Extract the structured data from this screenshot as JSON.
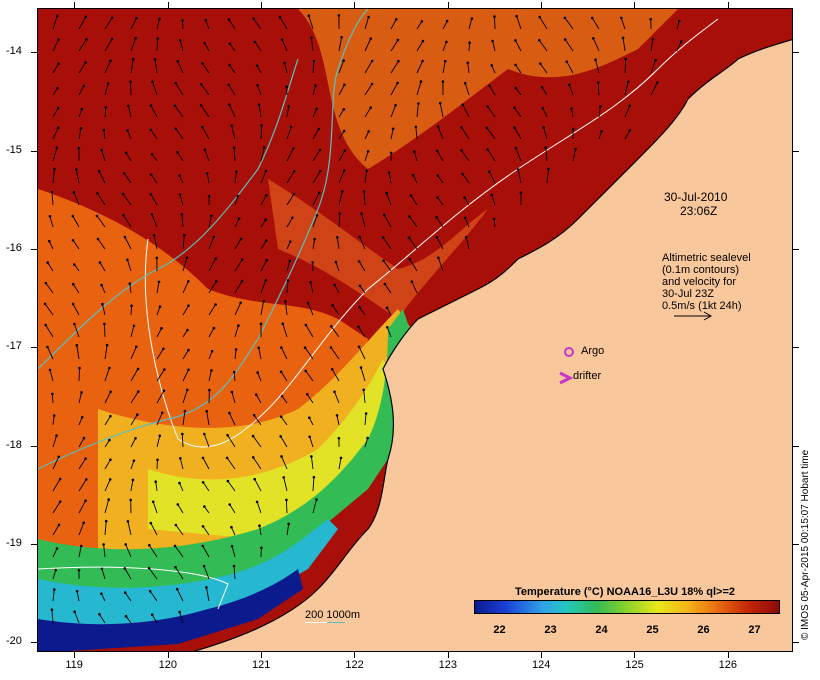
{
  "date_label": "30-Jul-2010",
  "time_label": "23:06Z",
  "altimetry_lines": [
    "Altimetric sealevel",
    "(0.1m contours)",
    "and velocity for",
    "30-Jul 23Z",
    "0.5m/s (1kt 24h)"
  ],
  "argo_label": "Argo",
  "drifter_label": "drifter",
  "bathy_label": "200 1000m",
  "colorbar": {
    "title": "Temperature (°C) NOAA16_L3U 18% ql>=2",
    "ticks": [
      "22",
      "23",
      "24",
      "25",
      "26",
      "27"
    ],
    "tick_values": [
      22,
      23,
      24,
      25,
      26,
      27
    ],
    "range": [
      21.5,
      27.5
    ]
  },
  "side_credit": "© IMOS 05-Apr-2015 00:15:07 Hobart time",
  "lon_ticks": [
    "119",
    "120",
    "121",
    "122",
    "123",
    "124",
    "125",
    "126"
  ],
  "lon_values": [
    119,
    120,
    121,
    122,
    123,
    124,
    125,
    126
  ],
  "lat_ticks": [
    "-14",
    "-15",
    "-16",
    "-17",
    "-18",
    "-19",
    "-20"
  ],
  "lat_values": [
    -14,
    -15,
    -16,
    -17,
    -18,
    -19,
    -20
  ],
  "extent": {
    "lon": [
      118.6,
      126.7
    ],
    "lat": [
      -20.1,
      -13.55
    ]
  },
  "colors": {
    "land": "#f8c79b",
    "sst_hot": "#a80f08",
    "sst_warm": "#e8620f",
    "sst_mid": "#f0b020",
    "sst_green": "#33bb55",
    "sst_cool": "#25b8d0",
    "sst_cold": "#0b1a8c",
    "argo": "#cc33cc",
    "bathy_200": "#ffffff",
    "bathy_1000": "#5bbfbf"
  }
}
